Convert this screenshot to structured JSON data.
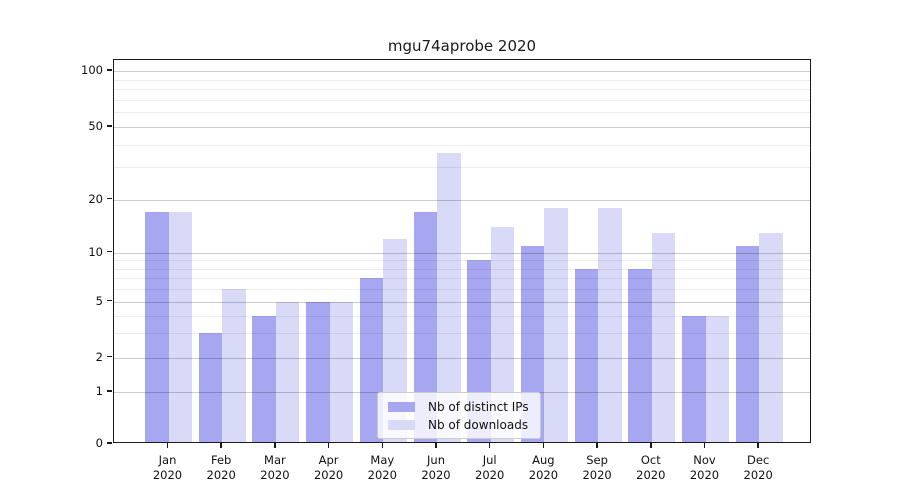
{
  "chart_data": {
    "type": "bar",
    "title": "mgu74aprobe 2020",
    "categories": [
      "Jan 2020",
      "Feb 2020",
      "Mar 2020",
      "Apr 2020",
      "May 2020",
      "Jun 2020",
      "Jul 2020",
      "Aug 2020",
      "Sep 2020",
      "Oct 2020",
      "Nov 2020",
      "Dec 2020"
    ],
    "series": [
      {
        "name": "Nb of distinct IPs",
        "color": "#a6a6f1",
        "values": [
          17,
          3,
          4,
          5,
          7,
          17,
          9,
          11,
          8,
          8,
          4,
          11
        ]
      },
      {
        "name": "Nb of downloads",
        "color": "#d9d9f8",
        "values": [
          17,
          6,
          5,
          5,
          12,
          36,
          14,
          18,
          18,
          13,
          4,
          13
        ]
      }
    ],
    "yscale": "log1p",
    "ylim": [
      0,
      100
    ],
    "ytick_values": [
      0,
      1,
      2,
      5,
      10,
      20,
      50,
      100
    ],
    "ytick_labels": [
      "0",
      "1",
      "2",
      "5",
      "10",
      "20",
      "50",
      "100"
    ],
    "minor_ytick_values": [
      3,
      4,
      6,
      7,
      8,
      9,
      30,
      40,
      60,
      70,
      80,
      90
    ],
    "grid": true,
    "legend_position": "lower center",
    "colors": {
      "axis": "#1a1a1a",
      "major_grid": "#cccccc",
      "minor_grid": "#ededed",
      "background": "#ffffff"
    }
  }
}
